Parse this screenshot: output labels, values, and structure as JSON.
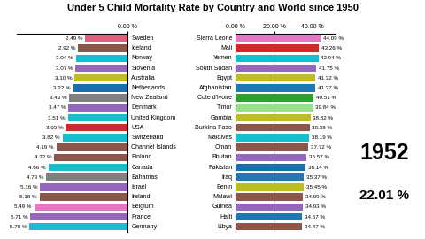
{
  "chart_data": [
    {
      "type": "bar",
      "orientation": "horizontal",
      "title": "Under 5 Child Mortality Rate by Country and World since 1950",
      "categories": [
        "Sweden",
        "Iceland",
        "Norway",
        "Slovenia",
        "Australia",
        "Netherlands",
        "New Zealand",
        "Denmark",
        "United Kingdom",
        "USA",
        "Switzerland",
        "Channel Islands",
        "Finland",
        "Canada",
        "Bahamas",
        "Israel",
        "Ireland",
        "Belgium",
        "France",
        "Germany"
      ],
      "values": [
        2.49,
        2.92,
        3.04,
        3.07,
        3.1,
        3.22,
        3.43,
        3.47,
        3.51,
        3.65,
        3.82,
        4.19,
        4.32,
        4.66,
        4.79,
        5.16,
        5.18,
        5.49,
        5.71,
        5.78
      ],
      "value_labels": [
        "2.49 %",
        "2.92 %",
        "3.04 %",
        "3.07 %",
        "3.10 %",
        "3.22 %",
        "3.43 %",
        "3.47 %",
        "3.51 %",
        "3.65 %",
        "3.82 %",
        "4.19 %",
        "4.32 %",
        "4.66 %",
        "4.79 %",
        "5.16 %",
        "5.18 %",
        "5.49 %",
        "5.71 %",
        "5.78 %"
      ],
      "colors": [
        "#e06080",
        "#8c564b",
        "#17becf",
        "#9467bd",
        "#bcbd22",
        "#1a6faf",
        "#7f7f7f",
        "#9467bd",
        "#17becf",
        "#d62728",
        "#17becf",
        "#8c564b",
        "#8c564b",
        "#17becf",
        "#7f7f7f",
        "#9467bd",
        "#8c564b",
        "#e377c2",
        "#9467bd",
        "#17becf"
      ],
      "data_labels": true,
      "xlim": [
        6.5,
        0
      ],
      "xticks": [
        {
          "value": 0,
          "label": "0.00 %"
        }
      ],
      "grid": true,
      "tick_labels": "x"
    },
    {
      "type": "bar",
      "orientation": "horizontal",
      "categories": [
        "Sierra Leone",
        "Mali",
        "Yemen",
        "South Sudan",
        "Egypt",
        "Afghanistan",
        "Cote d'Ivoire",
        "Timor",
        "Gambia",
        "Burkina Faso",
        "Maldives",
        "Oman",
        "Bhutan",
        "Pakistan",
        "Iraq",
        "Benin",
        "Malawi",
        "Guinea",
        "Haiti",
        "Libya"
      ],
      "values": [
        44.09,
        43.26,
        42.94,
        41.75,
        41.32,
        41.37,
        40.51,
        39.84,
        38.82,
        38.39,
        38.19,
        37.72,
        36.57,
        36.14,
        35.37,
        35.45,
        34.99,
        34.93,
        34.57,
        34.47
      ],
      "value_labels": [
        "44.09 %",
        "43.26 %",
        "42.94 %",
        "41.75 %",
        "41.32 %",
        "41.37 %",
        "40.51 %",
        "39.84 %",
        "38.82 %",
        "38.39 %",
        "38.19 %",
        "37.72 %",
        "36.57 %",
        "36.14 %",
        "35.37 %",
        "35.45 %",
        "34.99 %",
        "34.93 %",
        "34.57 %",
        "34.47 %"
      ],
      "colors": [
        "#e377c2",
        "#d62728",
        "#17becf",
        "#9467bd",
        "#bcbd22",
        "#1f77b4",
        "#2ca02c",
        "#98df8a",
        "#bcbd22",
        "#8c564b",
        "#17becf",
        "#8c564b",
        "#9467bd",
        "#1a6faf",
        "#1f77b4",
        "#bcbd22",
        "#8c564b",
        "#9467bd",
        "#1f77b4",
        "#8c564b"
      ],
      "data_labels": true,
      "xlim": [
        0,
        52
      ],
      "xticks": [
        {
          "value": 0,
          "label": "0.00 %"
        },
        {
          "value": 20,
          "label": "20.00 %"
        },
        {
          "value": 40,
          "label": "40.00 %"
        }
      ],
      "grid": true,
      "tick_labels": "x",
      "annotations": [
        "1952",
        "22.01 %"
      ]
    }
  ]
}
